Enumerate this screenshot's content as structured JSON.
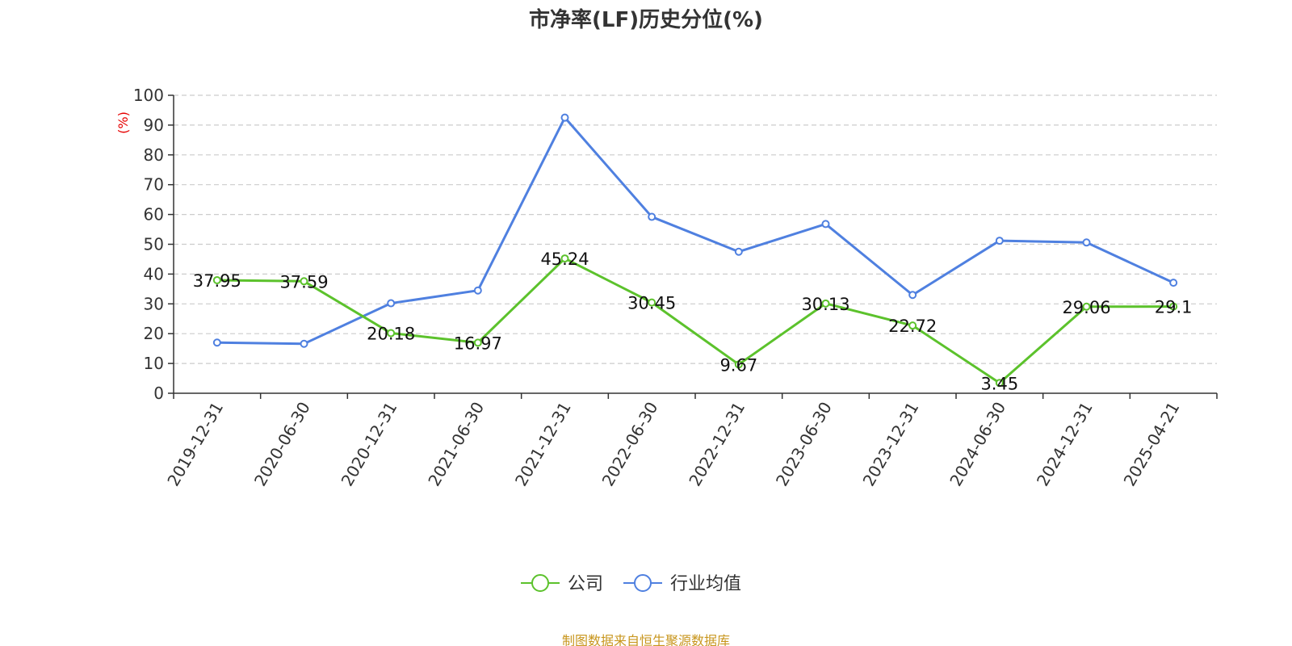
{
  "chart_data": {
    "type": "line",
    "title": "市净率(LF)历史分位(%)",
    "ylabel": "(%)",
    "ylim": [
      0,
      100
    ],
    "yticks": [
      0,
      10,
      20,
      30,
      40,
      50,
      60,
      70,
      80,
      90,
      100
    ],
    "grid": true,
    "legend_position": "bottom",
    "categories": [
      "2019-12-31",
      "2020-06-30",
      "2020-12-31",
      "2021-06-30",
      "2021-12-31",
      "2022-06-30",
      "2022-12-31",
      "2023-06-30",
      "2023-12-31",
      "2024-06-30",
      "2024-12-31",
      "2025-04-21"
    ],
    "series": [
      {
        "name": "公司",
        "color": "#5cc22c",
        "values": [
          37.95,
          37.59,
          20.18,
          16.97,
          45.24,
          30.45,
          9.67,
          30.13,
          22.72,
          3.45,
          29.06,
          29.1
        ],
        "labels": [
          "37.95",
          "37.59",
          "20.18",
          "16.97",
          "45.24",
          "30.45",
          "9.67",
          "30.13",
          "22.72",
          "3.45",
          "29.06",
          "29.1"
        ]
      },
      {
        "name": "行业均值",
        "color": "#4f80e0",
        "values": [
          17.0,
          16.6,
          30.2,
          34.5,
          92.5,
          59.2,
          47.5,
          56.8,
          33.0,
          51.2,
          50.6,
          37.1
        ]
      }
    ]
  },
  "source": "制图数据来自恒生聚源数据库"
}
